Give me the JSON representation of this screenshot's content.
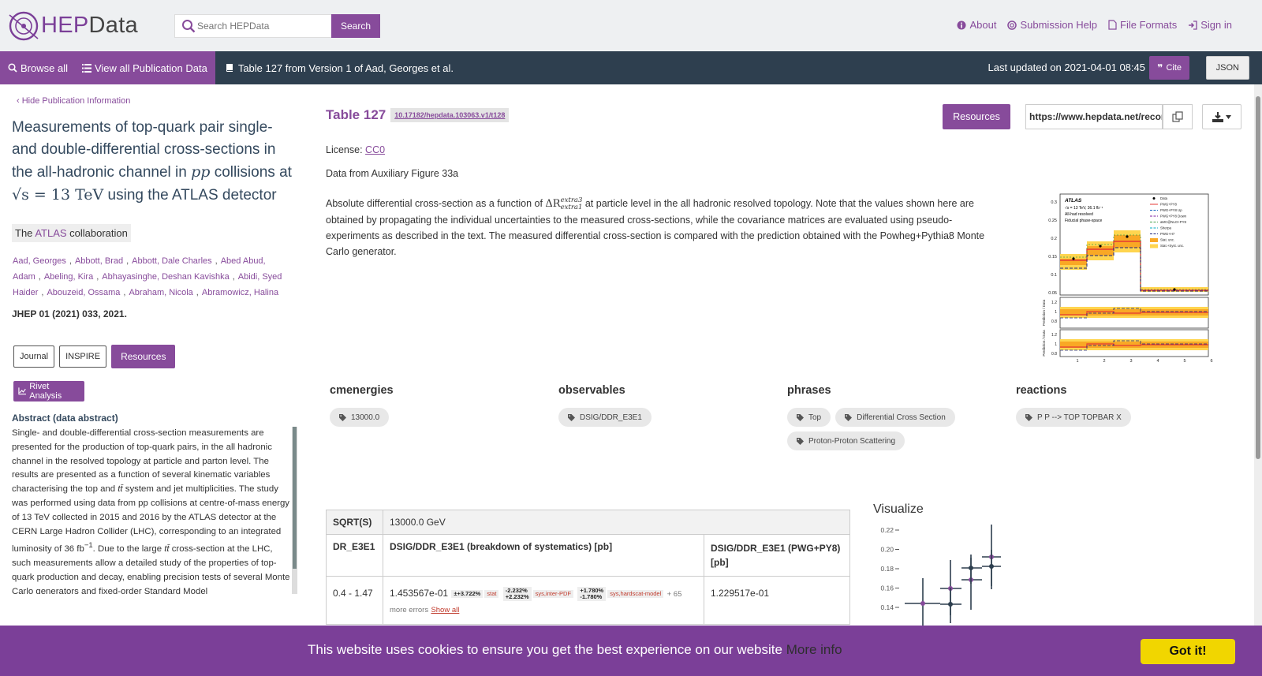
{
  "header": {
    "logo_hep": "HEP",
    "logo_data": "Data",
    "search_placeholder": "Search HEPData",
    "search_button": "Search",
    "nav": [
      {
        "label": "About",
        "icon": "info-icon"
      },
      {
        "label": "Submission Help",
        "icon": "lifebuoy-icon"
      },
      {
        "label": "File Formats",
        "icon": "file-icon"
      },
      {
        "label": "Sign in",
        "icon": "sign-in-icon"
      }
    ]
  },
  "subbar": {
    "browse_all": "Browse all",
    "view_all": "View all Publication Data",
    "breadcrumb": "Table 127 from Version 1 of Aad, Georges et al.",
    "last_updated": "Last updated on 2021-04-01 08:45",
    "cite": "Cite",
    "json": "JSON"
  },
  "sidebar": {
    "hide_info": "Hide Publication Information",
    "title_part1": "Measurements of top-quark pair single- and double-differential cross-sections in the all-hadronic channel in ",
    "title_pp": "pp",
    "title_part2": " collisions at",
    "title_sqrt": "√s = 13 TeV",
    "title_part3": " using the ATLAS detector",
    "collab_the": "The",
    "collab_name": "ATLAS",
    "collab_word": "collaboration",
    "authors": [
      "Aad, Georges",
      "Abbott, Brad",
      "Abbott, Dale Charles",
      "Abed Abud, Adam",
      "Abeling, Kira",
      "Abhayasinghe, Deshan Kavishka",
      "Abidi, Syed Haider",
      "Abouzeid, Ossama",
      "Abraham, Nicola",
      "Abramowicz, Halina"
    ],
    "journal": "JHEP 01 (2021) 033, 2021",
    "buttons": {
      "journal": "Journal",
      "inspire": "INSPIRE",
      "resources": "Resources"
    },
    "rivet": "Rivet Analysis",
    "abstract_heading": "Abstract (data abstract)",
    "abstract_1": "Single- and double-differential cross-section measurements are presented for the production of top-quark pairs, in the all hadronic channel in the resolved topology at particle and parton level. The results are presented as a function of several kinematic variables characterising the top and ",
    "abstract_tt1": "tt̄",
    "abstract_2": " system and jet multiplicities. The study was performed using data from pp collisions at centre-of-mass energy of 13 TeV collected in 2015 and 2016 by the ATLAS detector at the CERN Large Hadron Collider (LHC), corresponding to an integrated luminosity of 36 fb",
    "abstract_sup": "−1",
    "abstract_3": ". Due to the large ",
    "abstract_tt2": "tt̄",
    "abstract_4": " cross-section at the LHC, such measurements allow a detailed study of the properties of top-quark production and decay, enabling precision tests of several Monte Carlo generators and fixed-order Standard Model"
  },
  "table_info": {
    "title": "Table 127",
    "doi": "10.17182/hepdata.103063.v1/t128",
    "resources": "Resources",
    "url": "https://www.hepdata.net/record/",
    "license_label": "License:",
    "license_link": "CC0",
    "aux": "Data from Auxiliary Figure 33a",
    "desc_1": "Absolute differential cross-section as a function of ",
    "desc_sym": "ΔR",
    "desc_sup": "extra3",
    "desc_sub": "extra1",
    "desc_2": " at particle level in the all hadronic resolved topology. Note that the values shown here are obtained by propagating the individual uncertainties to the measured cross-sections, while the covariance matrices are evaluated using pseudo-experiments as described in the text. The measured differential cross-section is compared with the prediction obtained with the Powheg+Pythia8 Monte Carlo generator."
  },
  "figure": {
    "atlas": "ATLAS",
    "energy": "√s = 13 TeV, 36.1 fb⁻¹",
    "channel": "All-had resolved",
    "space": "Fiducial phase-space",
    "legend": [
      "Data",
      "PWG+PY8",
      "PWG+PY8 Up",
      "PWG+PY8 Down",
      "aMC@NLO+PY8",
      "Sherpa",
      "PWG+H7",
      "Stat. unc.",
      "Stat.+Syst. unc."
    ],
    "ylabels": [
      "0.3",
      "0.25",
      "0.2",
      "0.15",
      "0.1",
      "0.05"
    ],
    "ratio_labels": [
      "1.2",
      "1",
      "0.8"
    ],
    "xlabels": [
      "1",
      "2",
      "3",
      "4",
      "5",
      "6"
    ],
    "ratio_ylabel": "Prediction / Data",
    "colors": {
      "nominal": "#e53935",
      "band_stat": "#f9a825",
      "band_syst": "#ffd54f"
    }
  },
  "keywords": [
    {
      "heading": "cmenergies",
      "chips": [
        "13000.0"
      ]
    },
    {
      "heading": "observables",
      "chips": [
        "DSIG/DDR_E3E1"
      ]
    },
    {
      "heading": "phrases",
      "chips": [
        "Top",
        "Differential Cross Section",
        "Proton-Proton Scattering"
      ]
    },
    {
      "heading": "reactions",
      "chips": [
        "P P --> TOP TOPBAR X"
      ]
    }
  ],
  "data_table": {
    "sqrt_label": "SQRT(S)",
    "sqrt_value": "13000.0 GeV",
    "col1": "DR_E3E1",
    "col2": "DSIG/DDR_E3E1 (breakdown of systematics) [pb]",
    "col3": "DSIG/DDR_E3E1 (PWG+PY8) [pb]",
    "row": {
      "bin": "0.4 - 1.47",
      "value": "1.453567e-01",
      "stat": "±+3.722%",
      "stat_label": "stat",
      "pdf_up": "-2.232%",
      "pdf_down": "+2.232%",
      "pdf_label": "sys,inter-PDF",
      "hs_up": "+1.780%",
      "hs_down": "-1.780%",
      "hs_label": "sys,hardscat-model",
      "more": "+ 65",
      "more2": "more errors",
      "show_all": "Show all",
      "pred": "1.229517e-01"
    }
  },
  "visualize": {
    "title": "Visualize",
    "yticks": [
      "0.22",
      "0.20",
      "0.18",
      "0.16",
      "0.14"
    ]
  },
  "cookie": {
    "message": "This website uses cookies to ensure you get the best experience on our website",
    "more_info": "More info",
    "button": "Got it!"
  }
}
